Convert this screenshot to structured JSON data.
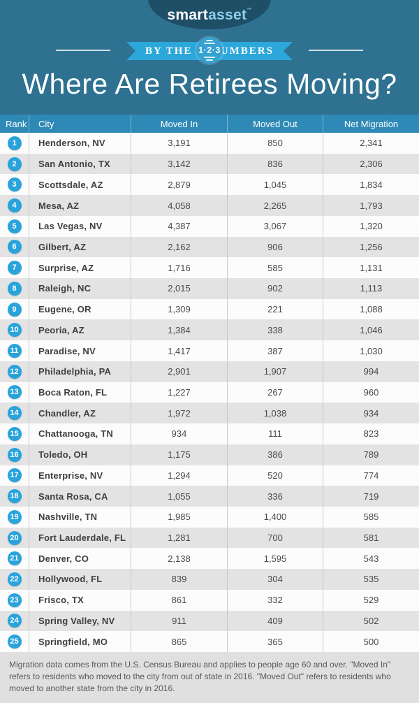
{
  "header": {
    "logo_part1": "smart",
    "logo_part2": "asset",
    "logo_tm": "™",
    "banner_left": "BY THE",
    "banner_circle": "1·2·3",
    "banner_right": "NUMBERS",
    "title": "Where Are Retirees Moving?"
  },
  "colors": {
    "background_teal": "#2e7190",
    "ellipse_navy": "#1f4e67",
    "logo_asset_blue": "#8ccfe9",
    "ribbon_blue": "#2ba7da",
    "table_header_blue": "#2e89b6",
    "rank_badge_blue": "#29a3db",
    "row_alt_gray": "#e3e3e3",
    "footer_gray": "#e0e0e0"
  },
  "chart_data": {
    "type": "table",
    "title": "Where Are Retirees Moving?",
    "columns": [
      "Rank",
      "City",
      "Moved In",
      "Moved Out",
      "Net Migration"
    ],
    "rows": [
      [
        1,
        "Henderson, NV",
        3191,
        850,
        2341
      ],
      [
        2,
        "San Antonio, TX",
        3142,
        836,
        2306
      ],
      [
        3,
        "Scottsdale, AZ",
        2879,
        1045,
        1834
      ],
      [
        4,
        "Mesa, AZ",
        4058,
        2265,
        1793
      ],
      [
        5,
        "Las Vegas, NV",
        4387,
        3067,
        1320
      ],
      [
        6,
        "Gilbert, AZ",
        2162,
        906,
        1256
      ],
      [
        7,
        "Surprise, AZ",
        1716,
        585,
        1131
      ],
      [
        8,
        "Raleigh, NC",
        2015,
        902,
        1113
      ],
      [
        9,
        "Eugene, OR",
        1309,
        221,
        1088
      ],
      [
        10,
        "Peoria, AZ",
        1384,
        338,
        1046
      ],
      [
        11,
        "Paradise, NV",
        1417,
        387,
        1030
      ],
      [
        12,
        "Philadelphia, PA",
        2901,
        1907,
        994
      ],
      [
        13,
        "Boca Raton, FL",
        1227,
        267,
        960
      ],
      [
        14,
        "Chandler, AZ",
        1972,
        1038,
        934
      ],
      [
        15,
        "Chattanooga, TN",
        934,
        111,
        823
      ],
      [
        16,
        "Toledo, OH",
        1175,
        386,
        789
      ],
      [
        17,
        "Enterprise, NV",
        1294,
        520,
        774
      ],
      [
        18,
        "Santa Rosa, CA",
        1055,
        336,
        719
      ],
      [
        19,
        "Nashville, TN",
        1985,
        1400,
        585
      ],
      [
        20,
        "Fort Lauderdale, FL",
        1281,
        700,
        581
      ],
      [
        21,
        "Denver, CO",
        2138,
        1595,
        543
      ],
      [
        22,
        "Hollywood, FL",
        839,
        304,
        535
      ],
      [
        23,
        "Frisco, TX",
        861,
        332,
        529
      ],
      [
        24,
        "Spring Valley, NV",
        911,
        409,
        502
      ],
      [
        25,
        "Springfield, MO",
        865,
        365,
        500
      ]
    ]
  },
  "footer": {
    "text": "Migration data comes from the U.S. Census Bureau and applies to people age 60 and over. \"Moved In\" refers to residents who moved to the city from out of state in 2016. \"Moved Out\" refers to residents who moved to another state from the city in 2016."
  }
}
